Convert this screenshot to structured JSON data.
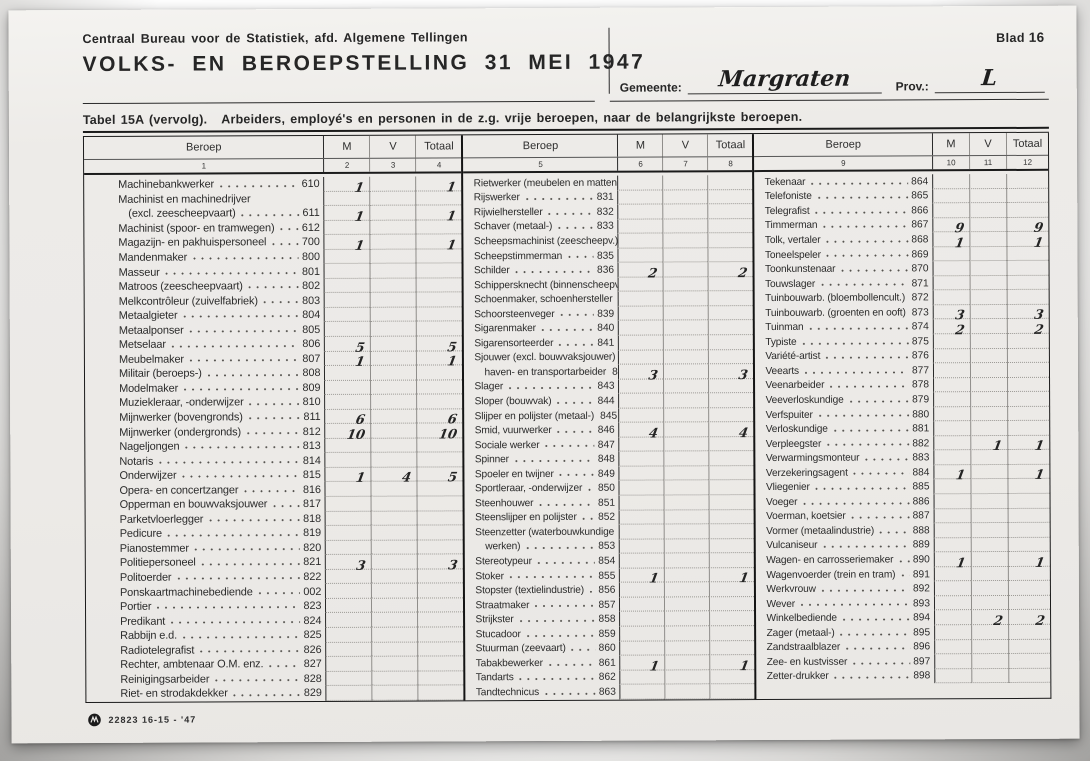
{
  "page": {
    "org": "Centraal Bureau voor de Statistiek, afd. Algemene Tellingen",
    "title": "VOLKS- EN BEROEPSTELLING 31 MEI 1947",
    "blad_label": "Blad",
    "blad_number": "16",
    "gemeente_label": "Gemeente:",
    "gemeente_value": "Margraten",
    "prov_label": "Prov.:",
    "prov_value": "L",
    "table_title": "Tabel 15A (vervolg).",
    "table_subtitle": "Arbeiders, employé's en personen in de z.g. vrije beroepen, naar de belangrijkste beroepen.",
    "footer_code": "22823 16-15 - '47",
    "logo_icon": "cbs-print-mark"
  },
  "table": {
    "group_headers": {
      "beroep": "Beroep",
      "m": "M",
      "v": "V",
      "totaal": "Totaal"
    },
    "col_numbers": [
      [
        "1",
        "2",
        "3",
        "4"
      ],
      [
        "5",
        "6",
        "7",
        "8"
      ],
      [
        "9",
        "10",
        "11",
        "12"
      ]
    ],
    "columns": [
      [
        {
          "name": "Machinebankwerker",
          "code": "610",
          "m": "1",
          "v": "",
          "t": "1"
        },
        {
          "name": "Machinist en machinedrijver",
          "code": "",
          "m": "",
          "v": "",
          "t": ""
        },
        {
          "name": "(excl. zeescheepvaart)",
          "indent": true,
          "code": "611",
          "m": "1",
          "v": "",
          "t": "1"
        },
        {
          "name": "Machinist (spoor- en tramwegen)",
          "code": "612",
          "m": "",
          "v": "",
          "t": ""
        },
        {
          "name": "Magazijn- en pakhuispersoneel",
          "code": "700",
          "m": "1",
          "v": "",
          "t": "1"
        },
        {
          "name": "Mandenmaker",
          "code": "800",
          "m": "",
          "v": "",
          "t": ""
        },
        {
          "name": "Masseur",
          "code": "801",
          "m": "",
          "v": "",
          "t": ""
        },
        {
          "name": "Matroos (zeescheepvaart)",
          "code": "802",
          "m": "",
          "v": "",
          "t": ""
        },
        {
          "name": "Melkcontrôleur (zuivelfabriek)",
          "code": "803",
          "m": "",
          "v": "",
          "t": ""
        },
        {
          "name": "Metaalgieter",
          "code": "804",
          "m": "",
          "v": "",
          "t": ""
        },
        {
          "name": "Metaalponser",
          "code": "805",
          "m": "",
          "v": "",
          "t": ""
        },
        {
          "name": "Metselaar",
          "code": "806",
          "m": "5",
          "v": "",
          "t": "5"
        },
        {
          "name": "Meubelmaker",
          "code": "807",
          "m": "1",
          "v": "",
          "t": "1"
        },
        {
          "name": "Militair (beroeps-)",
          "code": "808",
          "m": "",
          "v": "",
          "t": ""
        },
        {
          "name": "Modelmaker",
          "code": "809",
          "m": "",
          "v": "",
          "t": ""
        },
        {
          "name": "Muziekleraar, -onderwijzer",
          "code": "810",
          "m": "",
          "v": "",
          "t": ""
        },
        {
          "name": "Mijnwerker (bovengronds)",
          "code": "811",
          "m": "6",
          "v": "",
          "t": "6"
        },
        {
          "name": "Mijnwerker (ondergronds)",
          "code": "812",
          "m": "10",
          "v": "",
          "t": "10"
        },
        {
          "name": "Nageljongen",
          "code": "813",
          "m": "",
          "v": "",
          "t": ""
        },
        {
          "name": "Notaris",
          "code": "814",
          "m": "",
          "v": "",
          "t": ""
        },
        {
          "name": "Onderwijzer",
          "code": "815",
          "m": "1",
          "v": "4",
          "t": "5"
        },
        {
          "name": "Opera- en concertzanger",
          "code": "816",
          "m": "",
          "v": "",
          "t": ""
        },
        {
          "name": "Opperman en bouwvaksjouwer",
          "code": "817",
          "m": "",
          "v": "",
          "t": ""
        },
        {
          "name": "Parketvloerlegger",
          "code": "818",
          "m": "",
          "v": "",
          "t": ""
        },
        {
          "name": "Pedicure",
          "code": "819",
          "m": "",
          "v": "",
          "t": ""
        },
        {
          "name": "Pianostemmer",
          "code": "820",
          "m": "",
          "v": "",
          "t": ""
        },
        {
          "name": "Politiepersoneel",
          "code": "821",
          "m": "3",
          "v": "",
          "t": "3"
        },
        {
          "name": "Politoerder",
          "code": "822",
          "m": "",
          "v": "",
          "t": ""
        },
        {
          "name": "Ponskaartmachinebediende",
          "code": "002",
          "m": "",
          "v": "",
          "t": ""
        },
        {
          "name": "Portier",
          "code": "823",
          "m": "",
          "v": "",
          "t": ""
        },
        {
          "name": "Predikant",
          "code": "824",
          "m": "",
          "v": "",
          "t": ""
        },
        {
          "name": "Rabbijn e.d.",
          "code": "825",
          "m": "",
          "v": "",
          "t": ""
        },
        {
          "name": "Radiotelegrafist",
          "code": "826",
          "m": "",
          "v": "",
          "t": ""
        },
        {
          "name": "Rechter, ambtenaar O.M. enz.",
          "code": "827",
          "m": "",
          "v": "",
          "t": ""
        },
        {
          "name": "Reinigingsarbeider",
          "code": "828",
          "m": "",
          "v": "",
          "t": ""
        },
        {
          "name": "Riet- en strodakdekker",
          "code": "829",
          "m": "",
          "v": "",
          "t": ""
        }
      ],
      [
        {
          "name": "Rietwerker (meubelen en matten)",
          "code": "830",
          "m": "",
          "v": "",
          "t": ""
        },
        {
          "name": "Rijswerker",
          "code": "831",
          "m": "",
          "v": "",
          "t": ""
        },
        {
          "name": "Rijwielhersteller",
          "code": "832",
          "m": "",
          "v": "",
          "t": ""
        },
        {
          "name": "Schaver (metaal-)",
          "code": "833",
          "m": "",
          "v": "",
          "t": ""
        },
        {
          "name": "Scheepsmachinist (zeescheepv.)",
          "code": "834",
          "m": "",
          "v": "",
          "t": ""
        },
        {
          "name": "Scheepstimmerman",
          "code": "835",
          "m": "",
          "v": "",
          "t": ""
        },
        {
          "name": "Schilder",
          "code": "836",
          "m": "2",
          "v": "",
          "t": "2"
        },
        {
          "name": "Schippersknecht (binnenscheepv.)",
          "code": "837",
          "m": "",
          "v": "",
          "t": ""
        },
        {
          "name": "Schoenmaker, schoenhersteller",
          "code": "838",
          "m": "",
          "v": "",
          "t": ""
        },
        {
          "name": "Schoorsteenveger",
          "code": "839",
          "m": "",
          "v": "",
          "t": ""
        },
        {
          "name": "Sigarenmaker",
          "code": "840",
          "m": "",
          "v": "",
          "t": ""
        },
        {
          "name": "Sigarensorteerder",
          "code": "841",
          "m": "",
          "v": "",
          "t": ""
        },
        {
          "name": "Sjouwer (excl. bouwvaksjouwer)",
          "code": "",
          "m": "",
          "v": "",
          "t": ""
        },
        {
          "name": "haven- en transportarbeider",
          "indent": true,
          "code": "842",
          "m": "3",
          "v": "",
          "t": "3"
        },
        {
          "name": "Slager",
          "code": "843",
          "m": "",
          "v": "",
          "t": ""
        },
        {
          "name": "Sloper (bouwvak)",
          "code": "844",
          "m": "",
          "v": "",
          "t": ""
        },
        {
          "name": "Slijper en polijster (metaal-)",
          "code": "845",
          "m": "",
          "v": "",
          "t": ""
        },
        {
          "name": "Smid, vuurwerker",
          "code": "846",
          "m": "4",
          "v": "",
          "t": "4"
        },
        {
          "name": "Sociale werker",
          "code": "847",
          "m": "",
          "v": "",
          "t": ""
        },
        {
          "name": "Spinner",
          "code": "848",
          "m": "",
          "v": "",
          "t": ""
        },
        {
          "name": "Spoeler en twijner",
          "code": "849",
          "m": "",
          "v": "",
          "t": ""
        },
        {
          "name": "Sportleraar, -onderwijzer",
          "code": "850",
          "m": "",
          "v": "",
          "t": ""
        },
        {
          "name": "Steenhouwer",
          "code": "851",
          "m": "",
          "v": "",
          "t": ""
        },
        {
          "name": "Steenslijper en polijster",
          "code": "852",
          "m": "",
          "v": "",
          "t": ""
        },
        {
          "name": "Steenzetter (waterbouwkundige",
          "code": "",
          "m": "",
          "v": "",
          "t": ""
        },
        {
          "name": "werken)",
          "indent": true,
          "code": "853",
          "m": "",
          "v": "",
          "t": ""
        },
        {
          "name": "Stereotypeur",
          "code": "854",
          "m": "",
          "v": "",
          "t": ""
        },
        {
          "name": "Stoker",
          "code": "855",
          "m": "1",
          "v": "",
          "t": "1"
        },
        {
          "name": "Stopster (textielindustrie)",
          "code": "856",
          "m": "",
          "v": "",
          "t": ""
        },
        {
          "name": "Straatmaker",
          "code": "857",
          "m": "",
          "v": "",
          "t": ""
        },
        {
          "name": "Strijkster",
          "code": "858",
          "m": "",
          "v": "",
          "t": ""
        },
        {
          "name": "Stucadoor",
          "code": "859",
          "m": "",
          "v": "",
          "t": ""
        },
        {
          "name": "Stuurman (zeevaart)",
          "code": "860",
          "m": "",
          "v": "",
          "t": ""
        },
        {
          "name": "Tabakbewerker",
          "code": "861",
          "m": "1",
          "v": "",
          "t": "1"
        },
        {
          "name": "Tandarts",
          "code": "862",
          "m": "",
          "v": "",
          "t": ""
        },
        {
          "name": "Tandtechnicus",
          "code": "863",
          "m": "",
          "v": "",
          "t": ""
        }
      ],
      [
        {
          "name": "Tekenaar",
          "code": "864",
          "m": "",
          "v": "",
          "t": ""
        },
        {
          "name": "Telefoniste",
          "code": "865",
          "m": "",
          "v": "",
          "t": ""
        },
        {
          "name": "Telegrafist",
          "code": "866",
          "m": "",
          "v": "",
          "t": ""
        },
        {
          "name": "Timmerman",
          "code": "867",
          "m": "9",
          "v": "",
          "t": "9"
        },
        {
          "name": "Tolk, vertaler",
          "code": "868",
          "m": "1",
          "v": "",
          "t": "1"
        },
        {
          "name": "Toneelspeler",
          "code": "869",
          "m": "",
          "v": "",
          "t": ""
        },
        {
          "name": "Toonkunstenaar",
          "code": "870",
          "m": "",
          "v": "",
          "t": ""
        },
        {
          "name": "Touwslager",
          "code": "871",
          "m": "",
          "v": "",
          "t": ""
        },
        {
          "name": "Tuinbouwarb. (bloembollencult.)",
          "code": "872",
          "m": "",
          "v": "",
          "t": ""
        },
        {
          "name": "Tuinbouwarb. (groenten en ooft)",
          "code": "873",
          "m": "3",
          "v": "",
          "t": "3"
        },
        {
          "name": "Tuinman",
          "code": "874",
          "m": "2",
          "v": "",
          "t": "2"
        },
        {
          "name": "Typiste",
          "code": "875",
          "m": "",
          "v": "",
          "t": ""
        },
        {
          "name": "Variété-artist",
          "code": "876",
          "m": "",
          "v": "",
          "t": ""
        },
        {
          "name": "Veearts",
          "code": "877",
          "m": "",
          "v": "",
          "t": ""
        },
        {
          "name": "Veenarbeider",
          "code": "878",
          "m": "",
          "v": "",
          "t": ""
        },
        {
          "name": "Veeverloskundige",
          "code": "879",
          "m": "",
          "v": "",
          "t": ""
        },
        {
          "name": "Verfspuiter",
          "code": "880",
          "m": "",
          "v": "",
          "t": ""
        },
        {
          "name": "Verloskundige",
          "code": "881",
          "m": "",
          "v": "",
          "t": ""
        },
        {
          "name": "Verpleegster",
          "code": "882",
          "m": "",
          "v": "1",
          "t": "1"
        },
        {
          "name": "Verwarmingsmonteur",
          "code": "883",
          "m": "",
          "v": "",
          "t": ""
        },
        {
          "name": "Verzekeringsagent",
          "code": "884",
          "m": "1",
          "v": "",
          "t": "1"
        },
        {
          "name": "Vliegenier",
          "code": "885",
          "m": "",
          "v": "",
          "t": ""
        },
        {
          "name": "Voeger",
          "code": "886",
          "m": "",
          "v": "",
          "t": ""
        },
        {
          "name": "Voerman, koetsier",
          "code": "887",
          "m": "",
          "v": "",
          "t": ""
        },
        {
          "name": "Vormer (metaalindustrie)",
          "code": "888",
          "m": "",
          "v": "",
          "t": ""
        },
        {
          "name": "Vulcaniseur",
          "code": "889",
          "m": "",
          "v": "",
          "t": ""
        },
        {
          "name": "Wagen- en carrosseriemaker",
          "code": "890",
          "m": "1",
          "v": "",
          "t": "1"
        },
        {
          "name": "Wagenvoerder (trein en tram)",
          "code": "891",
          "m": "",
          "v": "",
          "t": ""
        },
        {
          "name": "Werkvrouw",
          "code": "892",
          "m": "",
          "v": "",
          "t": ""
        },
        {
          "name": "Wever",
          "code": "893",
          "m": "",
          "v": "",
          "t": ""
        },
        {
          "name": "Winkelbediende",
          "code": "894",
          "m": "",
          "v": "2",
          "t": "2"
        },
        {
          "name": "Zager (metaal-)",
          "code": "895",
          "m": "",
          "v": "",
          "t": ""
        },
        {
          "name": "Zandstraalblazer",
          "code": "896",
          "m": "",
          "v": "",
          "t": ""
        },
        {
          "name": "Zee- en kustvisser",
          "code": "897",
          "m": "",
          "v": "",
          "t": ""
        },
        {
          "name": "Zetter-drukker",
          "code": "898",
          "m": "",
          "v": "",
          "t": ""
        }
      ]
    ]
  }
}
